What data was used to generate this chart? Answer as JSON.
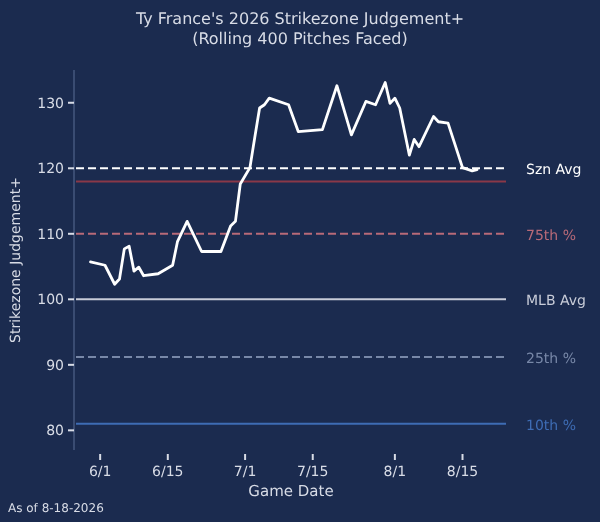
{
  "chart_data": {
    "type": "line",
    "title": "Ty France's 2026 Strikezone Judgement+\n(Rolling 400 Pitches Faced)",
    "xlabel": "Game Date",
    "ylabel": "Strikezone Judgement+",
    "annotations": [
      "As of 8-18-2026"
    ],
    "x": [
      "2026-05-30",
      "2026-06-02",
      "2026-06-04",
      "2026-06-05",
      "2026-06-06",
      "2026-06-07",
      "2026-06-08",
      "2026-06-09",
      "2026-06-10",
      "2026-06-13",
      "2026-06-16",
      "2026-06-17",
      "2026-06-19",
      "2026-06-22",
      "2026-06-26",
      "2026-06-28",
      "2026-06-29",
      "2026-06-30",
      "2026-07-02",
      "2026-07-03",
      "2026-07-04",
      "2026-07-05",
      "2026-07-06",
      "2026-07-10",
      "2026-07-12",
      "2026-07-17",
      "2026-07-20",
      "2026-07-23",
      "2026-07-26",
      "2026-07-28",
      "2026-07-30",
      "2026-07-31",
      "2026-08-01",
      "2026-08-02",
      "2026-08-04",
      "2026-08-05",
      "2026-08-06",
      "2026-08-09",
      "2026-08-10",
      "2026-08-12",
      "2026-08-15",
      "2026-08-17",
      "2026-08-18"
    ],
    "series": [
      {
        "color": "#ffffff",
        "values": [
          105.7,
          105.2,
          102.3,
          103.1,
          107.7,
          108.1,
          104.3,
          104.9,
          103.6,
          103.9,
          105.2,
          108.8,
          111.9,
          107.3,
          107.3,
          111.2,
          111.9,
          117.6,
          120.1,
          124.7,
          129.2,
          129.7,
          130.7,
          129.7,
          125.6,
          125.9,
          132.6,
          125.1,
          130.2,
          129.7,
          133.1,
          129.9,
          130.7,
          129.2,
          122.0,
          124.4,
          123.3,
          127.9,
          127.1,
          126.9,
          120.1,
          119.6,
          119.8
        ]
      }
    ],
    "xlim": [
      "2026-05-27",
      "2026-08-24"
    ],
    "xticks": [
      {
        "value": "2026-06-01",
        "label": "6/1"
      },
      {
        "value": "2026-06-15",
        "label": "6/15"
      },
      {
        "value": "2026-07-01",
        "label": "7/1"
      },
      {
        "value": "2026-07-15",
        "label": "7/15"
      },
      {
        "value": "2026-08-01",
        "label": "8/1"
      },
      {
        "value": "2026-08-15",
        "label": "8/15"
      }
    ],
    "ylim": [
      77,
      135
    ],
    "yticks": [
      80,
      90,
      100,
      110,
      120,
      130
    ],
    "ref_lines": [
      {
        "axis": "y",
        "value": 120,
        "label": "Szn Avg",
        "color": "#ffffff",
        "line_style": "dashed"
      },
      {
        "axis": "y",
        "value": 118,
        "label": null,
        "color": "#8a3848",
        "line_style": "solid"
      },
      {
        "axis": "y",
        "value": 110,
        "label": "75th %",
        "color": "#b86a78",
        "line_style": "dashed"
      },
      {
        "axis": "y",
        "value": 100,
        "label": "MLB Avg",
        "color": "#c8ccd8",
        "line_style": "solid"
      },
      {
        "axis": "y",
        "value": 91.2,
        "label": "25th %",
        "color": "#7888a8",
        "line_style": "dashed"
      },
      {
        "axis": "y",
        "value": 81,
        "label": "10th %",
        "color": "#3e6cb4",
        "line_style": "solid"
      }
    ],
    "grid": false,
    "marker": "none",
    "line_style": "solid"
  }
}
